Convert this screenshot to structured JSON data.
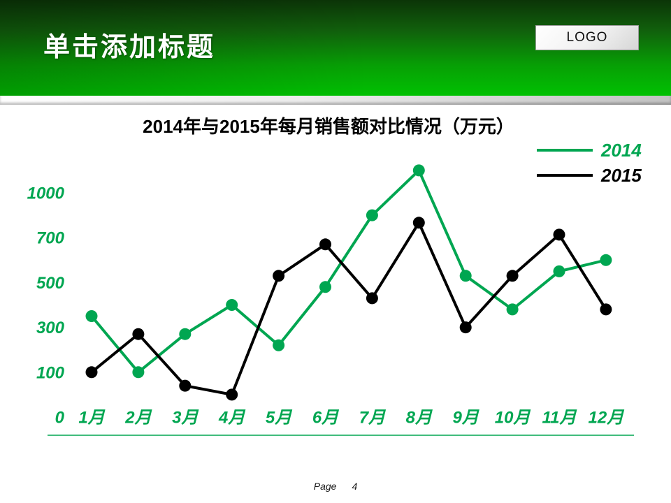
{
  "header": {
    "title": "单击添加标题",
    "logo": "LOGO"
  },
  "chart_data": {
    "type": "line",
    "title": "2014年与2015年每月销售额对比情况（万元）",
    "categories": [
      "1月",
      "2月",
      "3月",
      "4月",
      "5月",
      "6月",
      "7月",
      "8月",
      "9月",
      "10月",
      "11月",
      "12月"
    ],
    "y_ticks": [
      0,
      100,
      300,
      500,
      700,
      1000
    ],
    "y_tick_spacing": "uniform (non-linear value scale)",
    "axis_color": "#00A651",
    "grid": false,
    "legend_position": "top-right",
    "series": [
      {
        "name": "2014",
        "color": "#00A651",
        "values": [
          350,
          100,
          270,
          400,
          220,
          480,
          850,
          1150,
          530,
          380,
          550,
          600
        ]
      },
      {
        "name": "2015",
        "color": "#000000",
        "values": [
          100,
          270,
          70,
          50,
          530,
          670,
          430,
          800,
          300,
          530,
          720,
          380
        ]
      }
    ]
  },
  "footer": {
    "label": "Page",
    "page_number": "4"
  }
}
